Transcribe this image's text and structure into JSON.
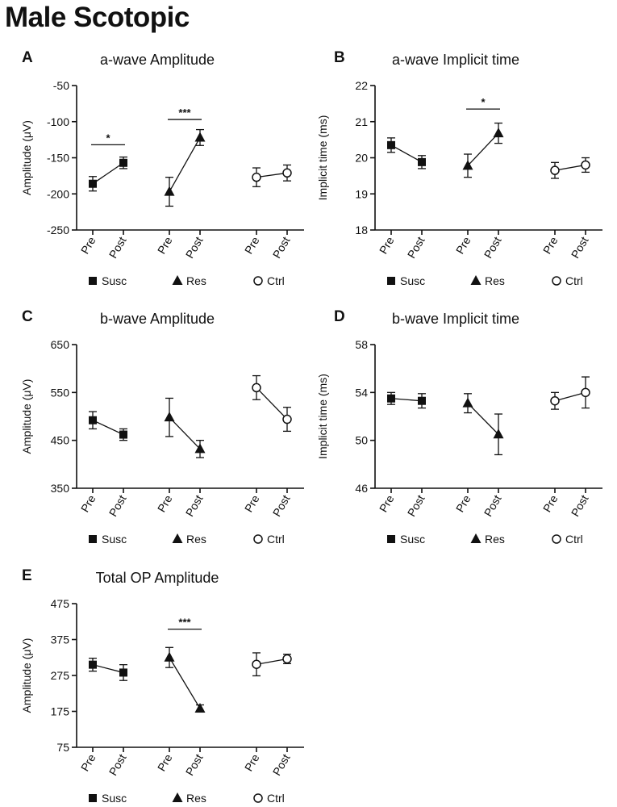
{
  "figure_title": "Male Scotopic",
  "icons": {
    "Susc": "filled-square-marker",
    "Res": "filled-triangle-marker",
    "Ctrl": "open-circle-marker"
  },
  "chart_data": [
    {
      "panel": "A",
      "type": "scatter",
      "title": "a-wave Amplitude",
      "ylabel": "Amplitude (μV)",
      "ylim": [
        -250,
        -50
      ],
      "yticks": [
        "-50",
        "-100",
        "-150",
        "-200",
        "-250"
      ],
      "groups": [
        {
          "name": "Susc",
          "marker": "square",
          "categories": [
            "Pre",
            "Post"
          ],
          "values": [
            -186,
            -157
          ],
          "errors": [
            10,
            8
          ]
        },
        {
          "name": "Res",
          "marker": "triangle",
          "categories": [
            "Pre",
            "Post"
          ],
          "values": [
            -197,
            -122
          ],
          "errors": [
            20,
            11
          ]
        },
        {
          "name": "Ctrl",
          "marker": "circle",
          "categories": [
            "Pre",
            "Post"
          ],
          "values": [
            -177,
            -171
          ],
          "errors": [
            13,
            11
          ]
        }
      ],
      "significance": [
        {
          "group": "Susc",
          "label": "*",
          "y": -132
        },
        {
          "group": "Res",
          "label": "***",
          "y": -97
        }
      ]
    },
    {
      "panel": "B",
      "type": "scatter",
      "title": "a-wave Implicit time",
      "ylabel": "Implicit time (ms)",
      "ylim": [
        18,
        22
      ],
      "yticks": [
        "22",
        "21",
        "20",
        "19",
        "18"
      ],
      "groups": [
        {
          "name": "Susc",
          "marker": "square",
          "categories": [
            "Pre",
            "Post"
          ],
          "values": [
            20.35,
            19.88
          ],
          "errors": [
            0.2,
            0.18
          ]
        },
        {
          "name": "Res",
          "marker": "triangle",
          "categories": [
            "Pre",
            "Post"
          ],
          "values": [
            19.78,
            20.68
          ],
          "errors": [
            0.32,
            0.28
          ]
        },
        {
          "name": "Ctrl",
          "marker": "circle",
          "categories": [
            "Pre",
            "Post"
          ],
          "values": [
            19.65,
            19.8
          ],
          "errors": [
            0.22,
            0.2
          ]
        }
      ],
      "significance": [
        {
          "group": "Res",
          "label": "*",
          "y": 21.35
        }
      ]
    },
    {
      "panel": "C",
      "type": "scatter",
      "title": "b-wave Amplitude",
      "ylabel": "Amplitude (μV)",
      "ylim": [
        350,
        650
      ],
      "yticks": [
        "650",
        "550",
        "450",
        "350"
      ],
      "groups": [
        {
          "name": "Susc",
          "marker": "square",
          "categories": [
            "Pre",
            "Post"
          ],
          "values": [
            492,
            462
          ],
          "errors": [
            18,
            12
          ]
        },
        {
          "name": "Res",
          "marker": "triangle",
          "categories": [
            "Pre",
            "Post"
          ],
          "values": [
            498,
            432
          ],
          "errors": [
            40,
            18
          ]
        },
        {
          "name": "Ctrl",
          "marker": "circle",
          "categories": [
            "Pre",
            "Post"
          ],
          "values": [
            560,
            494
          ],
          "errors": [
            25,
            25
          ]
        }
      ],
      "significance": []
    },
    {
      "panel": "D",
      "type": "scatter",
      "title": "b-wave Implicit time",
      "ylabel": "Implicit time (ms)",
      "ylim": [
        46,
        58
      ],
      "yticks": [
        "58",
        "54",
        "50",
        "46"
      ],
      "groups": [
        {
          "name": "Susc",
          "marker": "square",
          "categories": [
            "Pre",
            "Post"
          ],
          "values": [
            53.5,
            53.3
          ],
          "errors": [
            0.5,
            0.6
          ]
        },
        {
          "name": "Res",
          "marker": "triangle",
          "categories": [
            "Pre",
            "Post"
          ],
          "values": [
            53.1,
            50.5
          ],
          "errors": [
            0.8,
            1.7
          ]
        },
        {
          "name": "Ctrl",
          "marker": "circle",
          "categories": [
            "Pre",
            "Post"
          ],
          "values": [
            53.3,
            54.0
          ],
          "errors": [
            0.7,
            1.3
          ]
        }
      ],
      "significance": []
    },
    {
      "panel": "E",
      "type": "scatter",
      "title": "Total OP Amplitude",
      "ylabel": "Amplitude (μV)",
      "ylim": [
        75,
        475
      ],
      "yticks": [
        "475",
        "375",
        "275",
        "175",
        "75"
      ],
      "groups": [
        {
          "name": "Susc",
          "marker": "square",
          "categories": [
            "Pre",
            "Post"
          ],
          "values": [
            305,
            283
          ],
          "errors": [
            18,
            22
          ]
        },
        {
          "name": "Res",
          "marker": "triangle",
          "categories": [
            "Pre",
            "Post"
          ],
          "values": [
            325,
            183
          ],
          "errors": [
            28,
            10
          ]
        },
        {
          "name": "Ctrl",
          "marker": "circle",
          "categories": [
            "Pre",
            "Post"
          ],
          "values": [
            306,
            321
          ],
          "errors": [
            32,
            13
          ]
        }
      ],
      "significance": [
        {
          "group": "Res",
          "label": "***",
          "y": 404
        }
      ]
    }
  ]
}
